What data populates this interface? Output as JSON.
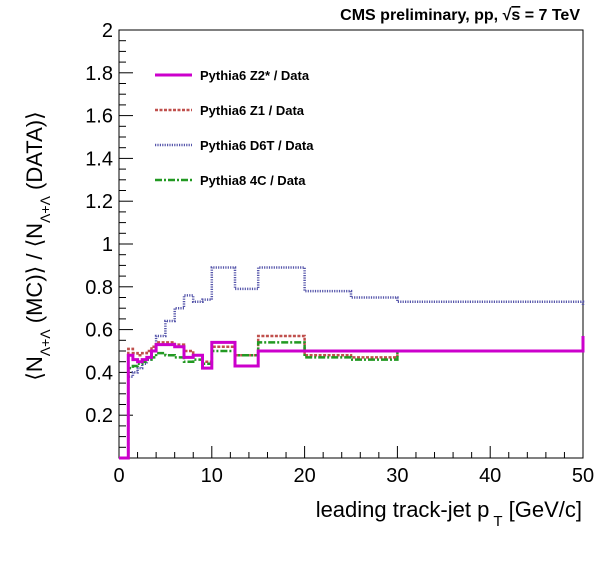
{
  "header": {
    "text_before_sqrt": "CMS preliminary, pp, ",
    "sqrt_symbol": "√",
    "sqrt_arg": "s",
    "text_after_sqrt": " = 7 TeV"
  },
  "y_axis_title": {
    "open": "⟨N",
    "sub1": "Λ+Λ",
    "mid": " (MC)⟩ / ⟨N",
    "sub2": "Λ+Λ",
    "close": " (DATA)⟩"
  },
  "x_axis_title": {
    "main": "leading track-jet p",
    "sub": "T",
    "unit": " [GeV/c]"
  },
  "chart_data": {
    "type": "line",
    "style": "step-histogram",
    "xlim": [
      0,
      50
    ],
    "ylim": [
      0,
      2
    ],
    "x_ticks": [
      {
        "value": 0,
        "label": "0"
      },
      {
        "value": 10,
        "label": "10"
      },
      {
        "value": 20,
        "label": "20"
      },
      {
        "value": 30,
        "label": "30"
      },
      {
        "value": 40,
        "label": "40"
      },
      {
        "value": 50,
        "label": "50"
      }
    ],
    "y_ticks": [
      {
        "value": 0.2,
        "label": "0.2"
      },
      {
        "value": 0.4,
        "label": "0.4"
      },
      {
        "value": 0.6,
        "label": "0.6"
      },
      {
        "value": 0.8,
        "label": "0.8"
      },
      {
        "value": 1.0,
        "label": "1"
      },
      {
        "value": 1.2,
        "label": "1.2"
      },
      {
        "value": 1.4,
        "label": "1.4"
      },
      {
        "value": 1.6,
        "label": "1.6"
      },
      {
        "value": 1.8,
        "label": "1.8"
      },
      {
        "value": 2.0,
        "label": "2"
      }
    ],
    "bin_edges": [
      0,
      1,
      1.5,
      2,
      2.5,
      3,
      3.5,
      4,
      5,
      6,
      7,
      8,
      9,
      10,
      12.5,
      15,
      20,
      25,
      30,
      50
    ],
    "legend_position": "top-left",
    "series": [
      {
        "name": "Pythia6 Z2* / Data",
        "color": "#cc00cc",
        "style": "solid-thick",
        "values": [
          0.0,
          0.48,
          0.46,
          0.45,
          0.46,
          0.47,
          0.5,
          0.53,
          0.53,
          0.52,
          0.47,
          0.48,
          0.42,
          0.54,
          0.43,
          0.5,
          0.5,
          0.5,
          0.5,
          0.57
        ]
      },
      {
        "name": "Pythia6 Z1 / Data",
        "color": "#c0504d",
        "style": "dashed",
        "values": [
          0.0,
          0.51,
          0.49,
          0.48,
          0.49,
          0.5,
          0.52,
          0.54,
          0.54,
          0.53,
          0.5,
          0.48,
          0.45,
          0.52,
          0.48,
          0.57,
          0.48,
          0.47,
          0.5,
          0.57
        ]
      },
      {
        "name": "Pythia6 D6T / Data",
        "color": "#5555aa",
        "style": "dotted",
        "values": [
          0.0,
          0.38,
          0.4,
          0.42,
          0.44,
          0.46,
          0.5,
          0.57,
          0.64,
          0.7,
          0.76,
          0.73,
          0.74,
          0.89,
          0.79,
          0.89,
          0.78,
          0.75,
          0.73,
          0.71
        ]
      },
      {
        "name": "Pythia8 4C / Data",
        "color": "#229922",
        "style": "dash-dot",
        "values": [
          0.0,
          0.42,
          0.43,
          0.44,
          0.45,
          0.46,
          0.47,
          0.49,
          0.48,
          0.47,
          0.45,
          0.46,
          0.44,
          0.5,
          0.48,
          0.54,
          0.47,
          0.46,
          0.5,
          0.57
        ]
      }
    ]
  }
}
